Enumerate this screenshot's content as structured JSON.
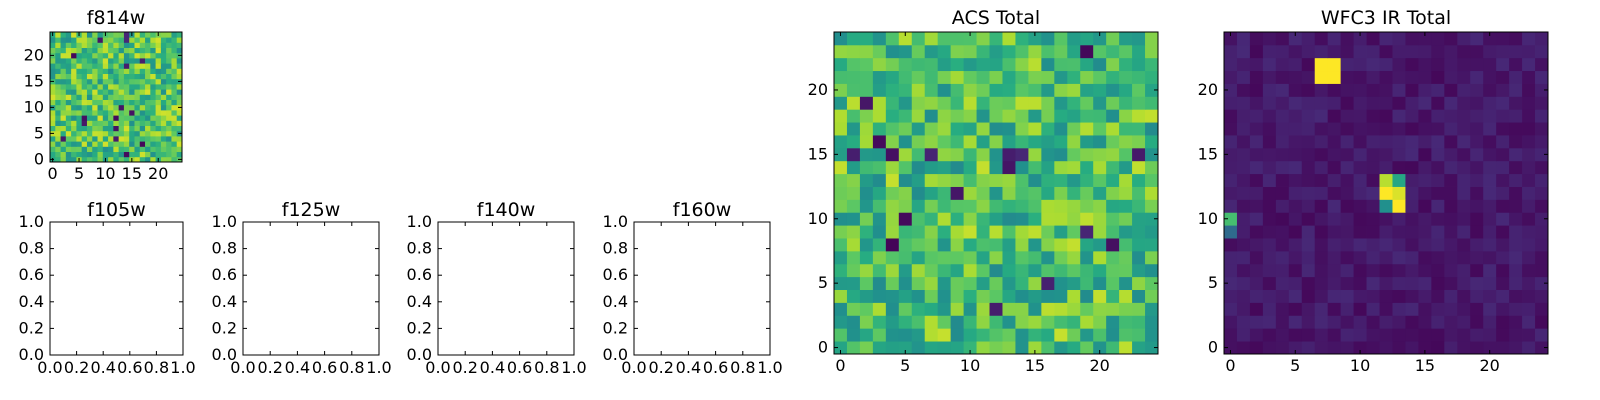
{
  "chart_data": [
    {
      "type": "heatmap",
      "title": "f814w",
      "xlim": [
        -0.5,
        24.5
      ],
      "ylim": [
        -0.5,
        24.5
      ],
      "xticks": [
        0,
        5,
        10,
        15,
        20
      ],
      "yticks": [
        0,
        5,
        10,
        15,
        20
      ],
      "grid_size": [
        25,
        25
      ],
      "colormap": "viridis",
      "distribution": {
        "base": 0.72,
        "noise": 0.22,
        "dark_rate": 0.03,
        "seed": 11
      }
    },
    {
      "type": "scatter",
      "title": "f105w",
      "xlim": [
        0.0,
        1.0
      ],
      "ylim": [
        0.0,
        1.0
      ],
      "xtick_labels": [
        "0.0",
        "0.2",
        "0.4",
        "0.6",
        "0.8",
        "1.0"
      ],
      "ytick_labels": [
        "0.0",
        "0.2",
        "0.4",
        "0.6",
        "0.8",
        "1.0"
      ],
      "series": []
    },
    {
      "type": "scatter",
      "title": "f125w",
      "xlim": [
        0.0,
        1.0
      ],
      "ylim": [
        0.0,
        1.0
      ],
      "xtick_labels": [
        "0.0",
        "0.2",
        "0.4",
        "0.6",
        "0.8",
        "1.0"
      ],
      "ytick_labels": [
        "0.0",
        "0.2",
        "0.4",
        "0.6",
        "0.8",
        "1.0"
      ],
      "series": []
    },
    {
      "type": "scatter",
      "title": "f140w",
      "xlim": [
        0.0,
        1.0
      ],
      "ylim": [
        0.0,
        1.0
      ],
      "xtick_labels": [
        "0.0",
        "0.2",
        "0.4",
        "0.6",
        "0.8",
        "1.0"
      ],
      "ytick_labels": [
        "0.0",
        "0.2",
        "0.4",
        "0.6",
        "0.8",
        "1.0"
      ],
      "series": []
    },
    {
      "type": "scatter",
      "title": "f160w",
      "xlim": [
        0.0,
        1.0
      ],
      "ylim": [
        0.0,
        1.0
      ],
      "xtick_labels": [
        "0.0",
        "0.2",
        "0.4",
        "0.6",
        "0.8",
        "1.0"
      ],
      "ytick_labels": [
        "0.0",
        "0.2",
        "0.4",
        "0.6",
        "0.8",
        "1.0"
      ],
      "series": []
    },
    {
      "type": "heatmap",
      "title": "ACS Total",
      "xlim": [
        -0.5,
        24.5
      ],
      "ylim": [
        -0.5,
        24.5
      ],
      "xticks": [
        0,
        5,
        10,
        15,
        20
      ],
      "yticks": [
        0,
        5,
        10,
        15,
        20
      ],
      "grid_size": [
        25,
        25
      ],
      "colormap": "viridis",
      "distribution": {
        "base": 0.7,
        "noise": 0.22,
        "dark_rate": 0.025,
        "seed": 23
      }
    },
    {
      "type": "heatmap",
      "title": "WFC3 IR Total",
      "xlim": [
        -0.5,
        24.5
      ],
      "ylim": [
        -0.5,
        24.5
      ],
      "xticks": [
        0,
        5,
        10,
        15,
        20
      ],
      "yticks": [
        0,
        5,
        10,
        15,
        20
      ],
      "grid_size": [
        25,
        25
      ],
      "colormap": "viridis",
      "distribution": {
        "base": 0.07,
        "noise": 0.05,
        "dark_rate": 0.0,
        "seed": 37
      },
      "bright_sources": [
        {
          "x": 7,
          "y": 21,
          "value": 1.0
        },
        {
          "x": 8,
          "y": 21,
          "value": 1.0
        },
        {
          "x": 7,
          "y": 22,
          "value": 1.0
        },
        {
          "x": 8,
          "y": 22,
          "value": 1.0
        },
        {
          "x": 12,
          "y": 11,
          "value": 0.5
        },
        {
          "x": 13,
          "y": 11,
          "value": 1.0
        },
        {
          "x": 12,
          "y": 12,
          "value": 1.0
        },
        {
          "x": 13,
          "y": 12,
          "value": 0.95
        },
        {
          "x": 12,
          "y": 13,
          "value": 0.9
        },
        {
          "x": 13,
          "y": 13,
          "value": 0.6
        },
        {
          "x": 0,
          "y": 10,
          "value": 0.7
        },
        {
          "x": 0,
          "y": 9,
          "value": 0.35
        }
      ]
    }
  ]
}
